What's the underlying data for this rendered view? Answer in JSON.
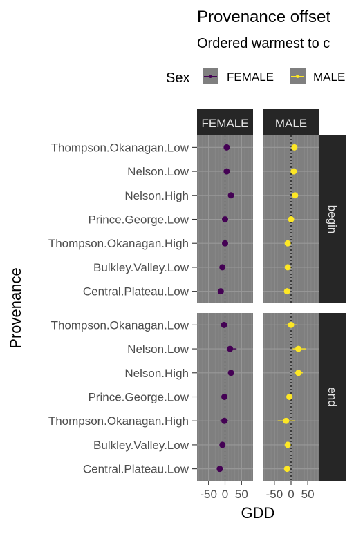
{
  "chart_data": {
    "type": "scatter",
    "title": "Provenance offset",
    "subtitle": "Ordered warmest to c",
    "xlabel": "GDD",
    "ylabel": "Provenance",
    "xlim": [
      -85,
      85
    ],
    "xticks": [
      -50,
      0,
      50
    ],
    "xtick_labels": [
      "-50",
      "0",
      "50"
    ],
    "reference_line_x": 0,
    "legend": {
      "title": "Sex",
      "position": "top",
      "entries": [
        {
          "label": "FEMALE",
          "color": "#440154"
        },
        {
          "label": "MALE",
          "color": "#FDE725"
        }
      ]
    },
    "column_facets": [
      "FEMALE",
      "MALE"
    ],
    "row_facets": [
      "begin",
      "end"
    ],
    "categories": [
      "Thompson.Okanagan.Low",
      "Nelson.Low",
      "Nelson.High",
      "Prince.George.Low",
      "Thompson.Okanagan.High",
      "Bulkley.Valley.Low",
      "Central.Plateau.Low"
    ],
    "panels": [
      {
        "sex": "FEMALE",
        "event": "begin",
        "points": [
          {
            "x": 5,
            "lo": 0,
            "hi": 10
          },
          {
            "x": 5,
            "lo": 0,
            "hi": 10
          },
          {
            "x": 18,
            "lo": 12,
            "hi": 24
          },
          {
            "x": 0,
            "lo": -5,
            "hi": 5
          },
          {
            "x": 0,
            "lo": -8,
            "hi": 8
          },
          {
            "x": -8,
            "lo": -13,
            "hi": -3
          },
          {
            "x": -13,
            "lo": -18,
            "hi": -8
          }
        ]
      },
      {
        "sex": "MALE",
        "event": "begin",
        "points": [
          {
            "x": 10,
            "lo": 5,
            "hi": 15
          },
          {
            "x": 8,
            "lo": 2,
            "hi": 14
          },
          {
            "x": 12,
            "lo": 7,
            "hi": 17
          },
          {
            "x": 0,
            "lo": -6,
            "hi": 6
          },
          {
            "x": -10,
            "lo": -16,
            "hi": -4
          },
          {
            "x": -10,
            "lo": -15,
            "hi": -5
          },
          {
            "x": -12,
            "lo": -17,
            "hi": -7
          }
        ]
      },
      {
        "sex": "FEMALE",
        "event": "end",
        "points": [
          {
            "x": -3,
            "lo": -13,
            "hi": 7
          },
          {
            "x": 15,
            "lo": 5,
            "hi": 35
          },
          {
            "x": 18,
            "lo": 10,
            "hi": 28
          },
          {
            "x": -2,
            "lo": -8,
            "hi": 4
          },
          {
            "x": -2,
            "lo": -15,
            "hi": 10
          },
          {
            "x": -8,
            "lo": -13,
            "hi": -3
          },
          {
            "x": -16,
            "lo": -22,
            "hi": -10
          }
        ]
      },
      {
        "sex": "MALE",
        "event": "end",
        "points": [
          {
            "x": 0,
            "lo": -18,
            "hi": 18
          },
          {
            "x": 22,
            "lo": 5,
            "hi": 45
          },
          {
            "x": 22,
            "lo": 10,
            "hi": 35
          },
          {
            "x": -5,
            "lo": -15,
            "hi": 5
          },
          {
            "x": -15,
            "lo": -40,
            "hi": 12
          },
          {
            "x": -10,
            "lo": -15,
            "hi": -5
          },
          {
            "x": -12,
            "lo": -18,
            "hi": -6
          }
        ]
      }
    ]
  }
}
